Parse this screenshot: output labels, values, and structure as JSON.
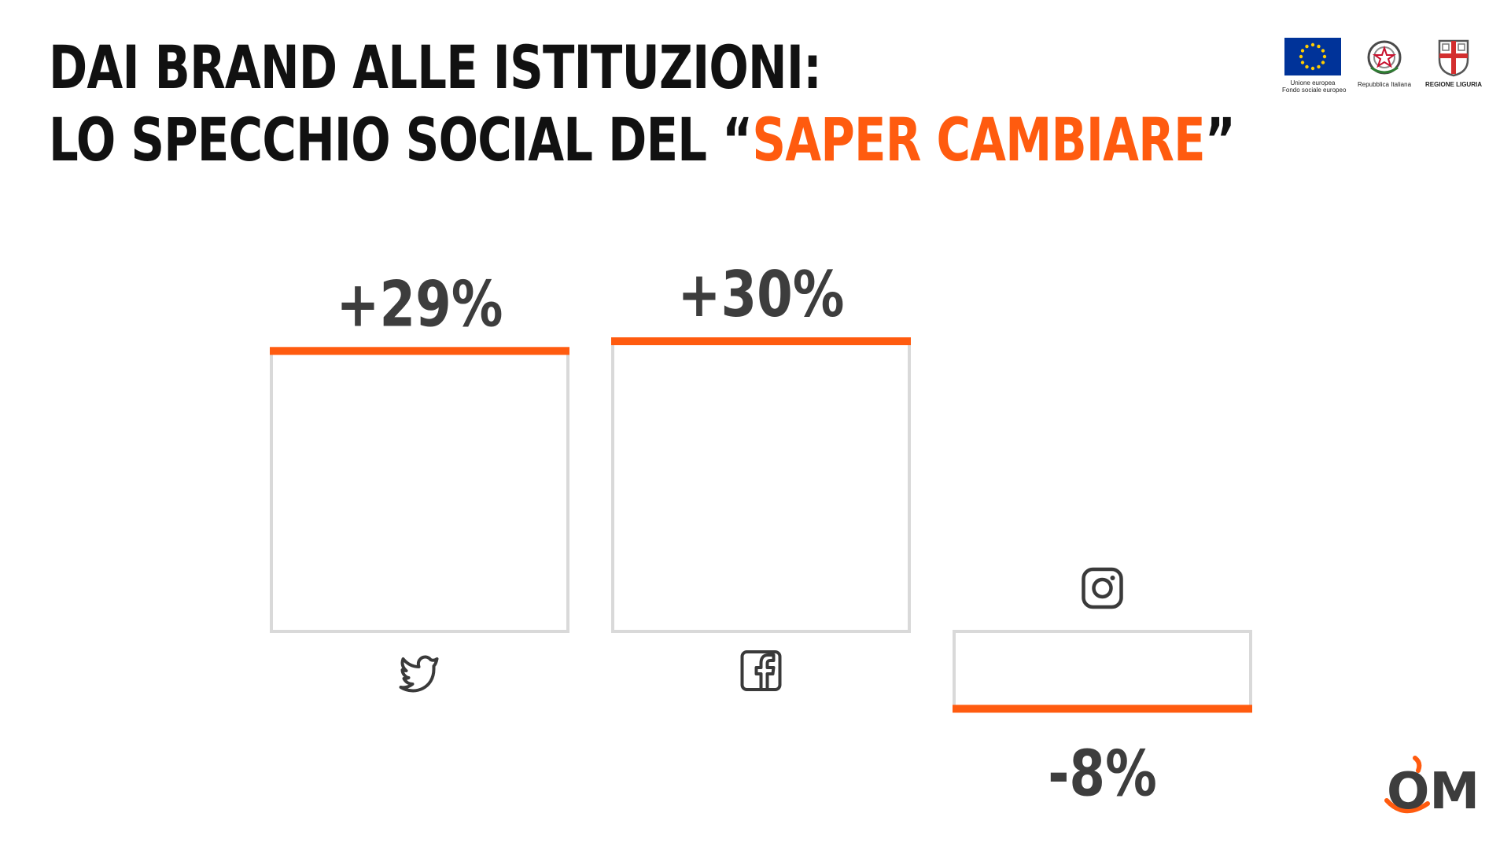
{
  "title": {
    "line1": "DAI BRAND ALLE ISTITUZIONI:",
    "line2_prefix": "LO SPECCHIO SOCIAL DEL “",
    "line2_accent": "SAPER CAMBIARE",
    "line2_suffix": "”"
  },
  "logos": {
    "eu_caption_1": "Unione europea",
    "eu_caption_2": "Fondo sociale europeo",
    "italy_caption": "Repubblica Italiana",
    "liguria_caption": "REGIONE LIGURIA"
  },
  "brand_mark": "OM",
  "colors": {
    "accent": "#ff5b0f",
    "bar_outline": "#d9d9d9",
    "text_dark": "#3d3d3d",
    "eu_blue": "#003399",
    "eu_yellow": "#ffcc00"
  },
  "chart_data": {
    "type": "bar",
    "categories": [
      "Twitter",
      "Facebook",
      "Instagram"
    ],
    "category_icons": [
      "twitter-icon",
      "facebook-icon",
      "instagram-icon"
    ],
    "values": [
      29,
      30,
      -8
    ],
    "value_labels": [
      "+29%",
      "+30%",
      "-8%"
    ],
    "unit": "%",
    "ylim": [
      -10,
      32
    ],
    "title": "",
    "xlabel": "",
    "ylabel": "",
    "grid": false,
    "legend": "none"
  }
}
